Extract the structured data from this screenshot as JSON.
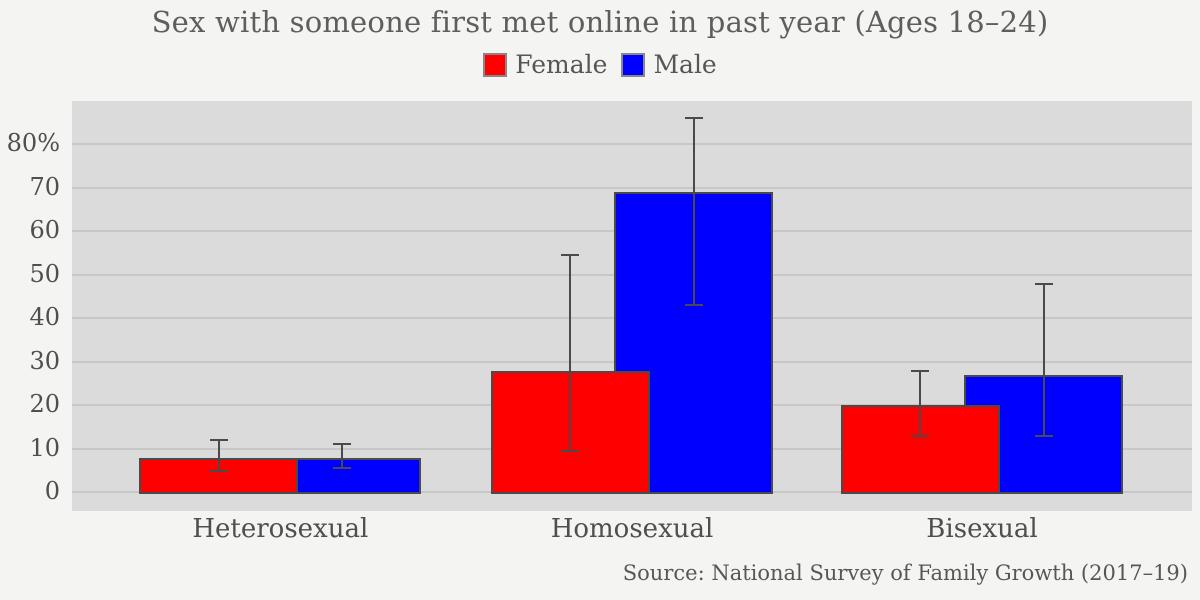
{
  "chart_data": {
    "type": "bar",
    "title": "Sex with someone first met online in past year (Ages 18–24)",
    "source": "Source: National Survey of Family Growth (2017–19)",
    "categories": [
      "Heterosexual",
      "Homosexual",
      "Bisexual"
    ],
    "series": [
      {
        "name": "Female",
        "color": "#ff0000",
        "values": [
          8,
          28,
          20
        ],
        "ci_low": [
          5,
          9.5,
          13
        ],
        "ci_high": [
          12,
          54.5,
          28
        ]
      },
      {
        "name": "Male",
        "color": "#0000ff",
        "values": [
          8,
          69,
          27
        ],
        "ci_low": [
          5.5,
          43,
          13
        ],
        "ci_high": [
          11,
          86,
          48
        ]
      }
    ],
    "xlabel": "",
    "ylabel": "",
    "ylim": [
      -4.3,
      90
    ],
    "yticks": [
      0,
      10,
      20,
      30,
      40,
      50,
      60,
      70,
      80
    ],
    "ytick_labels": [
      "0",
      "10",
      "20",
      "30",
      "40",
      "50",
      "60",
      "70",
      "80%"
    ],
    "grid": "horizontal-major",
    "legend_position": "top-center",
    "colors": {
      "page_bg": "#f4f4f2",
      "plot_bg": "#dbdbdb",
      "gridline": "#c7c7c7",
      "bar_edge": "#4a4a4a",
      "error_bar": "#4a4a4a",
      "text": "#575757"
    }
  }
}
